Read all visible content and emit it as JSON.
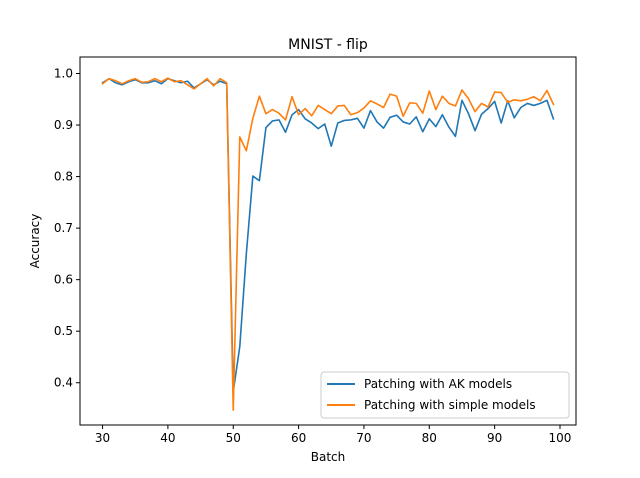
{
  "chart_data": {
    "type": "line",
    "title": "MNIST - flip",
    "xlabel": "Batch",
    "ylabel": "Accuracy",
    "xlim": [
      26.55,
      102.45
    ],
    "ylim": [
      0.318,
      1.032
    ],
    "xticks": [
      30,
      40,
      50,
      60,
      70,
      80,
      90,
      100
    ],
    "yticks": [
      0.4,
      0.5,
      0.6,
      0.7,
      0.8,
      0.9,
      1.0
    ],
    "ytick_labels": [
      "0.4",
      "0.5",
      "0.6",
      "0.7",
      "0.8",
      "0.9",
      "1.0"
    ],
    "grid": false,
    "legend_position": "lower-right",
    "x": [
      30,
      31,
      32,
      33,
      34,
      35,
      36,
      37,
      38,
      39,
      40,
      41,
      42,
      43,
      44,
      45,
      46,
      47,
      48,
      49,
      50,
      51,
      52,
      53,
      54,
      55,
      56,
      57,
      58,
      59,
      60,
      61,
      62,
      63,
      64,
      65,
      66,
      67,
      68,
      69,
      70,
      71,
      72,
      73,
      74,
      75,
      76,
      77,
      78,
      79,
      80,
      81,
      82,
      83,
      84,
      85,
      86,
      87,
      88,
      89,
      90,
      91,
      92,
      93,
      94,
      95,
      96,
      97,
      98,
      99
    ],
    "series": [
      {
        "name": "Patching with AK models",
        "color": "#1f77b4",
        "values": [
          0.982,
          0.99,
          0.982,
          0.978,
          0.984,
          0.988,
          0.982,
          0.982,
          0.986,
          0.98,
          0.99,
          0.986,
          0.982,
          0.985,
          0.972,
          0.98,
          0.988,
          0.978,
          0.985,
          0.98,
          0.383,
          0.47,
          0.65,
          0.801,
          0.792,
          0.895,
          0.908,
          0.91,
          0.886,
          0.92,
          0.93,
          0.912,
          0.904,
          0.893,
          0.902,
          0.859,
          0.904,
          0.909,
          0.91,
          0.913,
          0.894,
          0.928,
          0.906,
          0.894,
          0.915,
          0.919,
          0.906,
          0.902,
          0.916,
          0.887,
          0.912,
          0.897,
          0.92,
          0.896,
          0.878,
          0.948,
          0.922,
          0.889,
          0.921,
          0.932,
          0.946,
          0.904,
          0.947,
          0.914,
          0.934,
          0.942,
          0.938,
          0.942,
          0.948,
          0.912
        ]
      },
      {
        "name": "Patching with simple models",
        "color": "#ff7f0e",
        "values": [
          0.98,
          0.99,
          0.986,
          0.98,
          0.986,
          0.99,
          0.983,
          0.984,
          0.99,
          0.984,
          0.991,
          0.984,
          0.986,
          0.978,
          0.97,
          0.98,
          0.99,
          0.976,
          0.99,
          0.982,
          0.347,
          0.877,
          0.85,
          0.913,
          0.956,
          0.922,
          0.93,
          0.923,
          0.91,
          0.955,
          0.92,
          0.932,
          0.918,
          0.938,
          0.93,
          0.922,
          0.937,
          0.938,
          0.92,
          0.924,
          0.933,
          0.947,
          0.941,
          0.934,
          0.96,
          0.956,
          0.917,
          0.943,
          0.942,
          0.923,
          0.966,
          0.93,
          0.956,
          0.942,
          0.937,
          0.968,
          0.951,
          0.926,
          0.942,
          0.935,
          0.964,
          0.963,
          0.944,
          0.949,
          0.947,
          0.95,
          0.955,
          0.947,
          0.967,
          0.94
        ]
      }
    ]
  }
}
